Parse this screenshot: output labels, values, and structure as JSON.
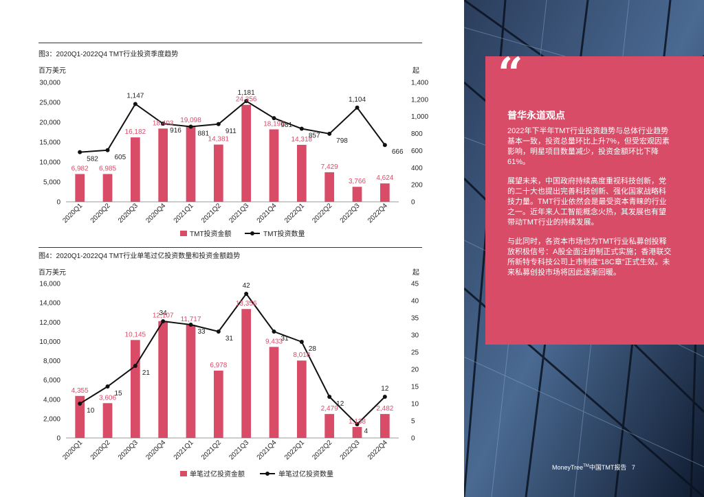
{
  "chart_data": [
    {
      "type": "bar",
      "title": "图3：2020Q1-2022Q4  TMT行业投资季度趋势",
      "left_unit": "百万美元",
      "right_unit": "起",
      "categories": [
        "2020Q1",
        "2020Q2",
        "2020Q3",
        "2020Q4",
        "2021Q1",
        "2021Q2",
        "2021Q3",
        "2021Q4",
        "2022Q1",
        "2022Q2",
        "2022Q3",
        "2022Q4"
      ],
      "left_ticks": [
        "0",
        "5,000",
        "10,000",
        "15,000",
        "20,000",
        "25,000",
        "30,000"
      ],
      "right_ticks": [
        "0",
        "200",
        "400",
        "600",
        "800",
        "1,000",
        "1,200",
        "1,400"
      ],
      "ylim": [
        0,
        30000
      ],
      "y2lim": [
        0,
        1400
      ],
      "series": [
        {
          "name": "TMT投资金额",
          "kind": "bar",
          "axis": "left",
          "color": "#d94c68",
          "values": [
            6982,
            6985,
            16182,
            18403,
            19098,
            14381,
            24356,
            18198,
            14318,
            7429,
            3766,
            4624
          ],
          "labels": [
            "6,982",
            "6,985",
            "16,182",
            "18,403",
            "19,098",
            "14,381",
            "24,356",
            "18,198",
            "14,318",
            "7,429",
            "3,766",
            "4,624"
          ]
        },
        {
          "name": "TMT投资数量",
          "kind": "line",
          "axis": "right",
          "color": "#111111",
          "values": [
            582,
            605,
            1147,
            916,
            881,
            911,
            1181,
            981,
            857,
            798,
            1104,
            666
          ],
          "labels": [
            "582",
            "605",
            "1,147",
            "916",
            "881",
            "911",
            "1,181",
            "981",
            "857",
            "798",
            "1,104",
            "666"
          ]
        }
      ],
      "legend_position": "bottom",
      "grid": false
    },
    {
      "type": "bar",
      "title": "图4：2020Q1-2022Q4  TMT行业单笔过亿投资数量和投资金额趋势",
      "left_unit": "百万美元",
      "right_unit": "起",
      "categories": [
        "2020Q1",
        "2020Q2",
        "2020Q3",
        "2020Q4",
        "2021Q1",
        "2021Q2",
        "2021Q3",
        "2021Q4",
        "2022Q1",
        "2022Q2",
        "2022Q3",
        "2022Q4"
      ],
      "left_ticks": [
        "0",
        "2,000",
        "4,000",
        "6,000",
        "8,000",
        "10,000",
        "12,000",
        "14,000",
        "16,000"
      ],
      "right_ticks": [
        "0",
        "5",
        "10",
        "15",
        "20",
        "25",
        "30",
        "35",
        "40",
        "45"
      ],
      "ylim": [
        0,
        16000
      ],
      "y2lim": [
        0,
        45
      ],
      "series": [
        {
          "name": "单笔过亿投资金额",
          "kind": "bar",
          "axis": "left",
          "color": "#d94c68",
          "values": [
            4355,
            3606,
            10145,
            12107,
            11717,
            6978,
            13356,
            9433,
            8018,
            2479,
            1138,
            2482
          ],
          "labels": [
            "4,355",
            "3,606",
            "10,145",
            "12,107",
            "11,717",
            "6,978",
            "13,356",
            "9,433",
            "8,018",
            "2,479",
            "1,138",
            "2,482"
          ]
        },
        {
          "name": "单笔过亿投资数量",
          "kind": "line",
          "axis": "right",
          "color": "#111111",
          "values": [
            10,
            15,
            21,
            34,
            33,
            31,
            42,
            31,
            28,
            12,
            4,
            12
          ],
          "labels": [
            "10",
            "15",
            "21",
            "34",
            "33",
            "31",
            "42",
            "31",
            "28",
            "12",
            "4",
            "12"
          ]
        }
      ],
      "legend_position": "bottom",
      "grid": false
    }
  ],
  "sidebar": {
    "heading": "普华永道观点",
    "paragraphs": [
      "2022年下半年TMT行业投资趋势与总体行业趋势基本一致，投资总量环比上升7%，但受宏观因素影响，明星项目数量减少，投资金额环比下降61%。",
      "展望未来，中国政府持续高度重视科技创新，党的二十大也提出完善科技创新、强化国家战略科技力量。TMT行业依然会是最受资本青睐的行业之一。近年来人工智能概念火热，其发展也有望带动TMT行业的持续发展。",
      "与此同时，各资本市场也为TMT行业私募创投释放积极信号：A股全面注册制正式实施；香港联交所新特专科技公司上市制度“18C章”正式生效。未来私募创投市场将因此逐渐回暖。"
    ]
  },
  "footer": {
    "brand": "MoneyTree",
    "tm": "TM",
    "suffix": "中国TMT报告",
    "page": "7"
  },
  "colors": {
    "accent": "#d94c68",
    "line": "#111111",
    "panel_bg": "#1b2a44"
  }
}
